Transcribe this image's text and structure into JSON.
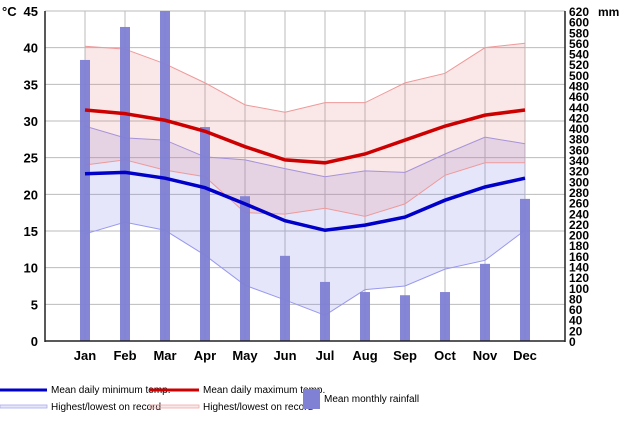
{
  "chart_data": {
    "type": "bar+line",
    "categories": [
      "Jan",
      "Feb",
      "Mar",
      "Apr",
      "May",
      "Jun",
      "Jul",
      "Aug",
      "Sep",
      "Oct",
      "Nov",
      "Dec"
    ],
    "left_axis": {
      "unit": "°C",
      "ylim": [
        0,
        45
      ],
      "ticks": [
        0,
        5,
        10,
        15,
        20,
        25,
        30,
        35,
        40,
        45
      ]
    },
    "right_axis": {
      "unit": "mm",
      "ylim": [
        0,
        620
      ],
      "ticks": [
        0,
        20,
        40,
        60,
        80,
        100,
        120,
        140,
        160,
        180,
        200,
        220,
        240,
        260,
        280,
        300,
        320,
        340,
        360,
        380,
        400,
        420,
        440,
        460,
        480,
        500,
        520,
        540,
        560,
        580,
        600,
        620
      ]
    },
    "grid": true,
    "legend_placement": "bottom",
    "series": [
      {
        "name": "Mean daily minimum temp.",
        "type": "line",
        "axis": "left",
        "color": "#0000c8",
        "values": [
          22.8,
          23.0,
          22.2,
          20.9,
          18.7,
          16.4,
          15.1,
          15.8,
          16.9,
          19.2,
          21.0,
          22.2
        ]
      },
      {
        "name": "Mean daily maximum temp.",
        "type": "line",
        "axis": "left",
        "color": "#cc0000",
        "values": [
          31.5,
          31.0,
          30.1,
          28.6,
          26.5,
          24.7,
          24.3,
          25.5,
          27.4,
          29.3,
          30.8,
          31.5
        ]
      },
      {
        "name": "Highest/lowest on record",
        "type": "band",
        "axis": "left",
        "color": "#8080ff",
        "upper": [
          29.3,
          27.7,
          27.4,
          25.1,
          24.7,
          23.5,
          22.4,
          23.2,
          23.0,
          25.5,
          27.8,
          26.9
        ],
        "lower": [
          14.6,
          16.2,
          15.1,
          11.7,
          7.6,
          5.6,
          3.5,
          7.0,
          7.5,
          9.8,
          11.0,
          15.1
        ]
      },
      {
        "name": "Highest/lowest on record",
        "type": "band",
        "axis": "left",
        "color": "#ee8888",
        "upper": [
          40.2,
          39.8,
          37.8,
          35.2,
          32.2,
          31.2,
          32.5,
          32.5,
          35.2,
          36.5,
          40.0,
          40.6
        ],
        "lower": [
          24.0,
          24.7,
          23.3,
          22.4,
          17.5,
          17.3,
          18.1,
          17.0,
          18.7,
          22.6,
          24.3,
          24.3
        ]
      },
      {
        "name": "Mean monthly rainfall",
        "type": "bar",
        "axis": "right",
        "color": "#8080d4",
        "values": [
          528,
          590,
          640,
          402,
          272,
          160,
          111,
          92,
          86,
          92,
          145,
          267
        ]
      }
    ]
  }
}
